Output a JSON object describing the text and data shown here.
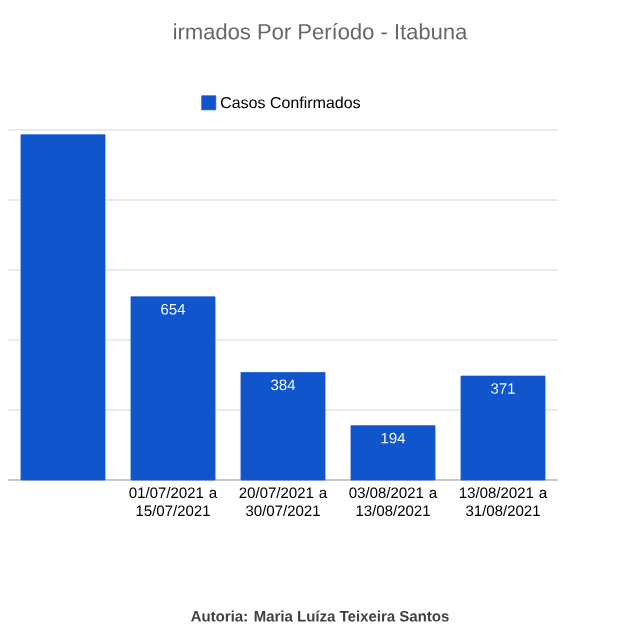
{
  "chart_data": {
    "type": "bar",
    "title": "irmados Por Período - Itabuna",
    "categories": [
      null,
      "01/07/2021 a 15/07/2021",
      "20/07/2021 a 30/07/2021",
      "03/08/2021 a 13/08/2021",
      "13/08/2021 a 31/08/2021"
    ],
    "series": [
      {
        "name": "Casos Confirmados",
        "color": "#1155cc",
        "values": [
          1233,
          654,
          384,
          194,
          371
        ],
        "value_labels": [
          null,
          "654",
          "384",
          "194",
          "371"
        ]
      }
    ],
    "ylim": [
      0,
      1250
    ],
    "yticks": [
      {
        "value": 0,
        "label": null
      },
      {
        "value": 250,
        "label": null
      },
      {
        "value": 500,
        "label": null
      },
      {
        "value": 750,
        "label": null
      },
      {
        "value": 1000,
        "label": null
      },
      {
        "value": 1250,
        "label": null
      }
    ],
    "tick_labels": "x",
    "grid": "y",
    "legend": "top",
    "annotations": [
      "Autoria: Maria Luíza Teixeira Santos"
    ]
  }
}
